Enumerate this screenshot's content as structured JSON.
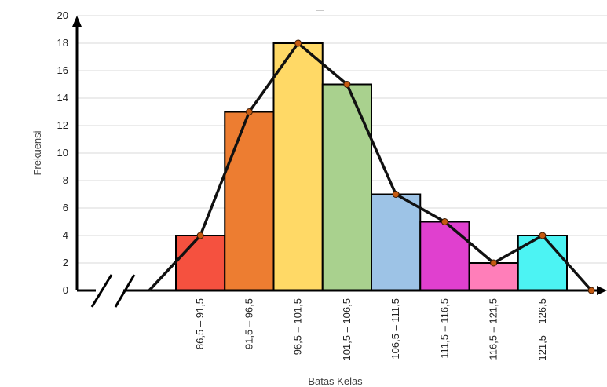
{
  "chart_data": {
    "type": "bar",
    "xlabel": "Batas Kelas",
    "ylabel": "Frekuensi",
    "ylim": [
      0,
      20
    ],
    "yticks": [
      0,
      2,
      4,
      6,
      8,
      10,
      12,
      14,
      16,
      18,
      20
    ],
    "categories": [
      "86,5 – 91,5",
      "91,5 – 96,5",
      "96,5 – 101,5",
      "101,5 – 106,5",
      "106,5 – 111,5",
      "111,5 – 116,5",
      "116,5 – 121,5",
      "121,5 – 126,5"
    ],
    "values": [
      4,
      13,
      18,
      15,
      7,
      5,
      2,
      4
    ],
    "bar_colors": [
      "#f5513f",
      "#ed7d31",
      "#ffd966",
      "#a9d18e",
      "#9dc3e6",
      "#e040cf",
      "#ff7eb9",
      "#4cf3f3"
    ],
    "polygon": [
      0,
      4,
      13,
      18,
      15,
      7,
      5,
      2,
      4,
      0
    ],
    "grid": true,
    "axis_break": true,
    "polygon_color": "#111111",
    "marker_color": "#c55a11"
  }
}
